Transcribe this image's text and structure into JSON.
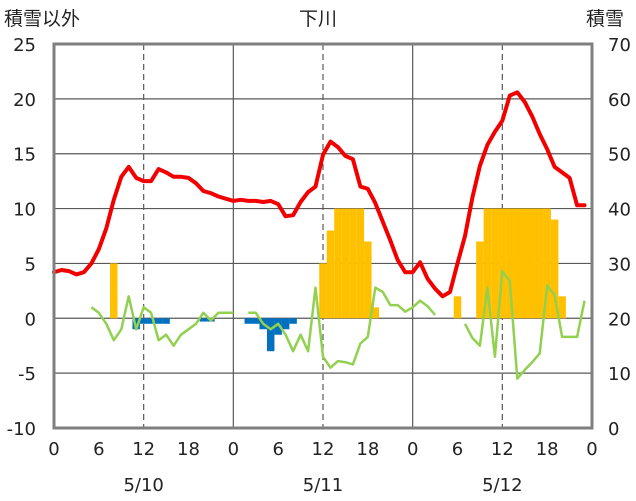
{
  "chart_data": {
    "type": "bar+line",
    "title": "下川",
    "y_left_label": "積雪以外",
    "y_right_label": "積雪",
    "y_left_range": [
      -10,
      25
    ],
    "y_left_ticks": [
      "25",
      "20",
      "15",
      "10",
      "5",
      "0",
      "-5",
      "-10"
    ],
    "y_right_range": [
      0,
      70
    ],
    "y_right_ticks": [
      "70",
      "60",
      "50",
      "40",
      "30",
      "20",
      "10",
      "0"
    ],
    "x_range_hours": [
      0,
      72
    ],
    "x_hour_ticks": [
      "0",
      "6",
      "12",
      "18",
      "0",
      "6",
      "12",
      "18",
      "0",
      "6",
      "12",
      "18",
      "0"
    ],
    "date_labels": [
      "5/10",
      "5/11",
      "5/12"
    ],
    "grid": "dashed vertical at 12:00, solid at 00:00",
    "colors": {
      "temperature": "#f20000",
      "precip_orange": "#ffc000",
      "precip_blue": "#0070c0",
      "green": "#92d050",
      "frame": "#7f7f7f"
    },
    "temperature_series": {
      "x": [
        0,
        1,
        2,
        3,
        4,
        5,
        6,
        7,
        8,
        9,
        10,
        11,
        12,
        13,
        14,
        15,
        16,
        17,
        18,
        19,
        20,
        21,
        22,
        23,
        24,
        25,
        26,
        27,
        28,
        29,
        30,
        31,
        32,
        33,
        34,
        35,
        36,
        37,
        38,
        39,
        40,
        41,
        42,
        43,
        44,
        45,
        46,
        47,
        48,
        49,
        50,
        51,
        52,
        53,
        54,
        55,
        56,
        57,
        58,
        59,
        60,
        61,
        62,
        63,
        64,
        65,
        66,
        67,
        68,
        69,
        70,
        71
      ],
      "values": [
        4.2,
        4.4,
        4.3,
        4.0,
        4.2,
        5.0,
        6.3,
        8.2,
        10.8,
        12.9,
        13.8,
        12.8,
        12.5,
        12.5,
        13.6,
        13.3,
        12.9,
        12.9,
        12.8,
        12.3,
        11.6,
        11.4,
        11.1,
        10.9,
        10.7,
        10.8,
        10.7,
        10.7,
        10.6,
        10.7,
        10.4,
        9.3,
        9.4,
        10.6,
        11.5,
        12.0,
        14.9,
        16.1,
        15.6,
        14.8,
        14.5,
        12.0,
        11.8,
        10.5,
        8.8,
        7.1,
        5.3,
        4.2,
        4.2,
        5.1,
        3.6,
        2.7,
        2.0,
        2.4,
        5.0,
        7.5,
        11.0,
        13.9,
        15.8,
        17.0,
        18.0,
        20.3,
        20.6,
        19.7,
        18.4,
        16.8,
        15.4,
        13.8,
        13.3,
        12.8,
        10.3,
        10.3
      ]
    },
    "green_series": [
      {
        "x": [
          5,
          6,
          7,
          8,
          9,
          10,
          11,
          12,
          13,
          14,
          15,
          16,
          17,
          18,
          19,
          20,
          21,
          22,
          23,
          24
        ],
        "values": [
          1.0,
          0.5,
          -0.5,
          -2,
          -1,
          2,
          -1,
          1,
          0.5,
          -2,
          -1.5,
          -2.5,
          -1.5,
          -1,
          -0.5,
          0.5,
          -0.2,
          0.5,
          0.5,
          0.5
        ]
      },
      {
        "x": [
          26,
          27,
          28,
          29,
          30,
          31,
          32,
          33,
          34,
          35,
          36,
          37,
          38,
          39,
          40,
          41,
          42,
          43,
          44,
          45,
          46,
          47,
          48,
          49,
          50,
          51
        ],
        "values": [
          0.5,
          0.5,
          -0.5,
          -1,
          -0.5,
          -1.5,
          -3.0,
          -1.5,
          -3.0,
          2.8,
          -3.5,
          -4.5,
          -3.9,
          -4.0,
          -4.2,
          -2.3,
          -1.7,
          2.8,
          2.4,
          1.2,
          1.2,
          0.6,
          1.0,
          1.6,
          1.1,
          0.3
        ]
      },
      {
        "x": [
          55,
          56,
          57,
          58,
          59,
          60,
          61,
          62,
          63,
          64,
          65,
          66,
          67,
          68,
          69,
          70,
          71
        ],
        "values": [
          -0.5,
          -1.8,
          -2.5,
          2.8,
          -3.5,
          4.3,
          3.4,
          -5.5,
          -4.7,
          -4.0,
          -3.2,
          3.0,
          2.1,
          -1.7,
          -1.7,
          -1.7,
          1.6
        ]
      }
    ],
    "precip_orange_bars": {
      "x": [
        8,
        36,
        37,
        38,
        39,
        40,
        41,
        42,
        43,
        44,
        54,
        57,
        58,
        59,
        60,
        61,
        62,
        63,
        64,
        65,
        66,
        67,
        68
      ],
      "values": [
        5,
        5,
        8,
        10,
        10,
        10,
        10,
        7,
        1,
        0,
        2,
        7,
        10,
        10,
        10,
        10,
        10,
        10,
        10,
        10,
        10,
        9,
        2
      ]
    },
    "precip_blue_bars": {
      "x": [
        11,
        12,
        13,
        14,
        15,
        20,
        21,
        26,
        27,
        28,
        29,
        30,
        31,
        32
      ],
      "values": [
        -1,
        -0.5,
        -0.5,
        -0.5,
        -0.5,
        -0.3,
        -0.3,
        -0.5,
        -0.5,
        -1.0,
        -3.0,
        -1.5,
        -1.0,
        -0.5
      ]
    }
  }
}
